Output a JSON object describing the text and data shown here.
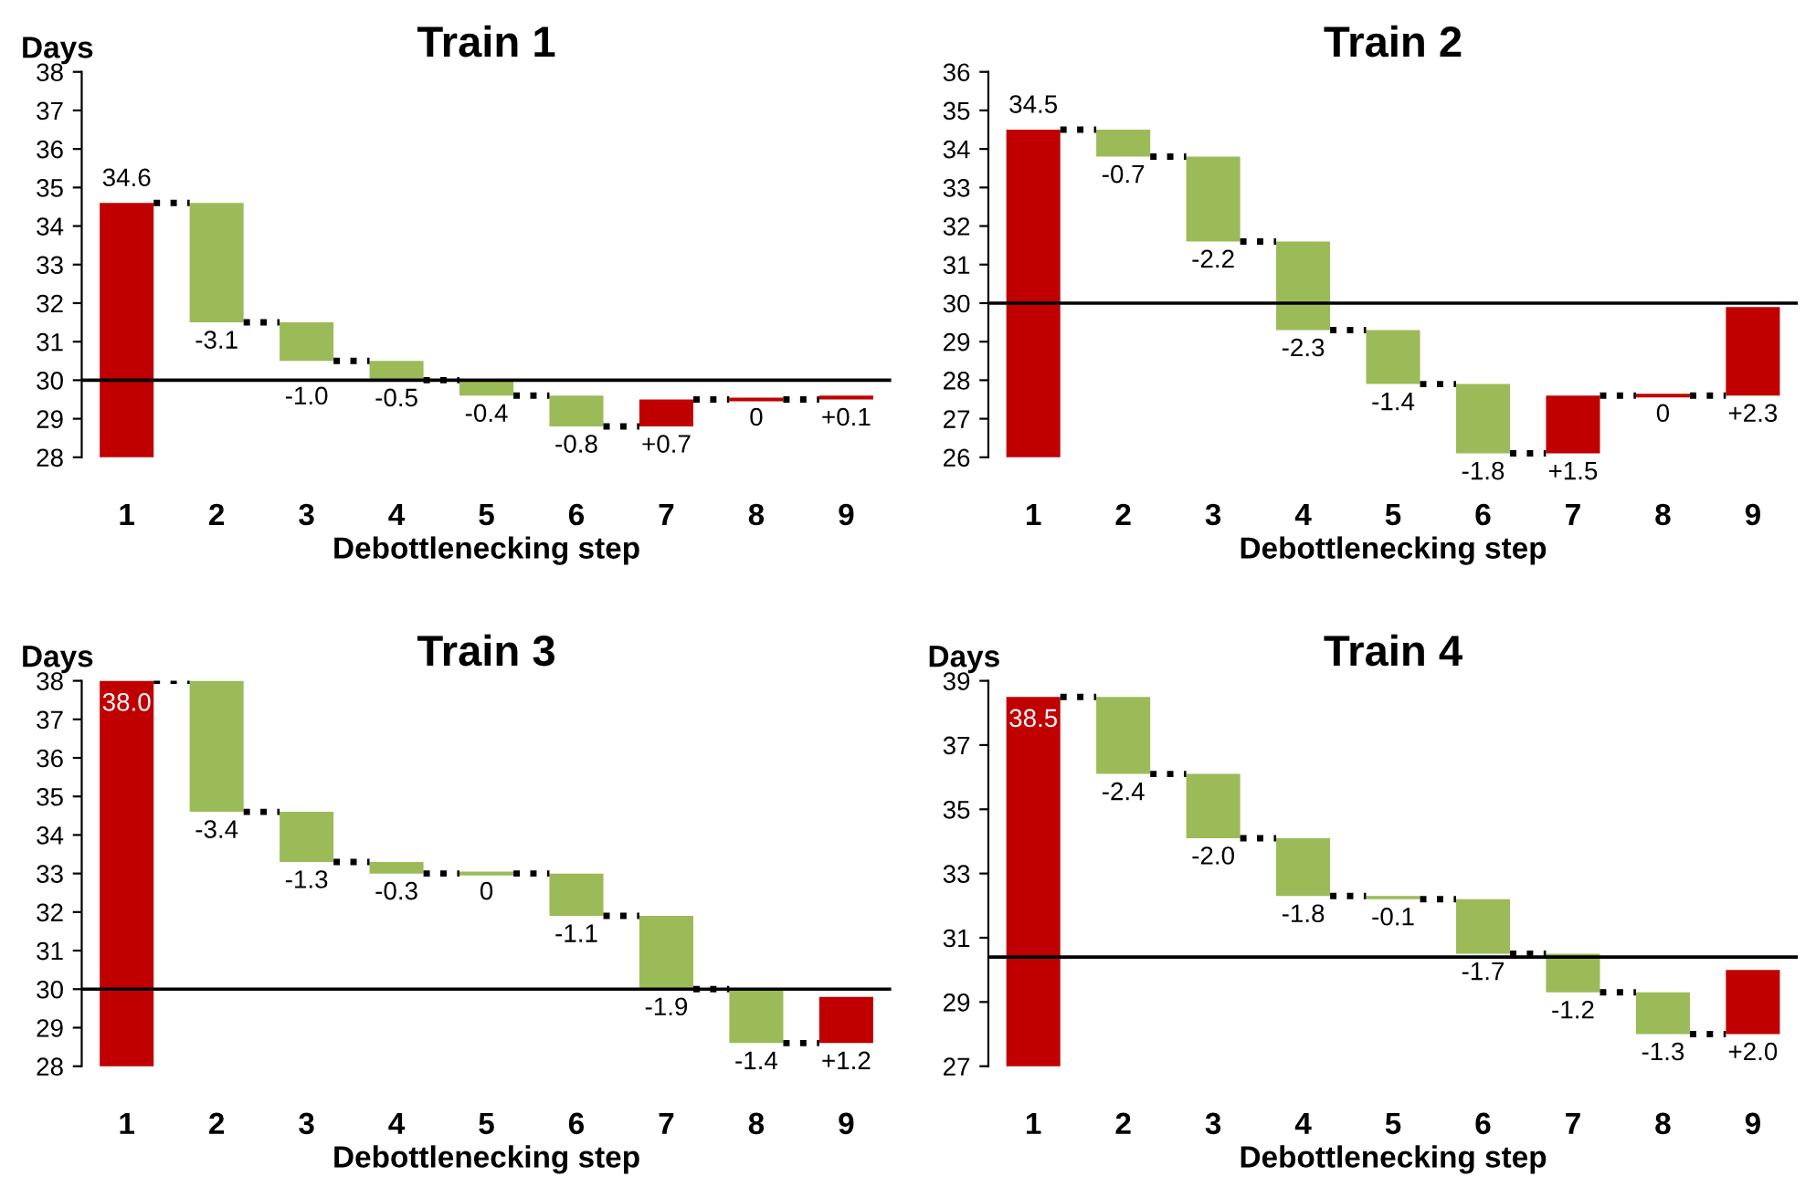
{
  "chart_data": [
    {
      "type": "bar",
      "title": "Train 1",
      "xlabel": "Debottlenecking step",
      "ylabel": "Days",
      "categories": [
        "1",
        "2",
        "3",
        "4",
        "5",
        "6",
        "7",
        "8",
        "9"
      ],
      "values": [
        34.6,
        -3.1,
        -1.0,
        -0.5,
        -0.4,
        -0.8,
        0.7,
        0,
        0.1
      ],
      "base": [
        0,
        34.6,
        31.5,
        30.5,
        30.0,
        29.6,
        28.8,
        29.5,
        29.5
      ],
      "colors": [
        "#c00000",
        "#9bbb59",
        "#9bbb59",
        "#9bbb59",
        "#9bbb59",
        "#9bbb59",
        "#c00000",
        "#c00000",
        "#c00000"
      ],
      "value_labels": [
        "34.6",
        "-3.1",
        "-1.0",
        "-0.5",
        "-0.4",
        "-0.8",
        "+0.7",
        "0",
        "+0.1"
      ],
      "ylim": [
        28,
        38
      ],
      "yticks": [
        28,
        29,
        30,
        31,
        32,
        33,
        34,
        35,
        36,
        37,
        38
      ],
      "ref_lines": [
        {
          "axis": "y",
          "value": 30,
          "color": "#000000"
        }
      ],
      "grid": false,
      "legend": false
    },
    {
      "type": "bar",
      "title": "Train 2",
      "xlabel": "Debottlenecking step",
      "categories": [
        "1",
        "2",
        "3",
        "4",
        "5",
        "6",
        "7",
        "8",
        "9"
      ],
      "values": [
        34.5,
        -0.7,
        -2.2,
        -2.3,
        -1.4,
        -1.8,
        1.5,
        0,
        2.3
      ],
      "base": [
        0,
        34.5,
        33.8,
        31.6,
        29.3,
        27.9,
        26.1,
        27.6,
        27.6
      ],
      "colors": [
        "#c00000",
        "#9bbb59",
        "#9bbb59",
        "#9bbb59",
        "#9bbb59",
        "#9bbb59",
        "#c00000",
        "#c00000",
        "#c00000"
      ],
      "value_labels": [
        "34.5",
        "-0.7",
        "-2.2",
        "-2.3",
        "-1.4",
        "-1.8",
        "+1.5",
        "0",
        "+2.3"
      ],
      "ylim": [
        26,
        36
      ],
      "yticks": [
        26,
        27,
        28,
        29,
        30,
        31,
        32,
        33,
        34,
        35,
        36
      ],
      "ref_lines": [
        {
          "axis": "y",
          "value": 30,
          "color": "#000000"
        }
      ],
      "grid": false,
      "legend": false
    },
    {
      "type": "bar",
      "title": "Train 3",
      "xlabel": "Debottlenecking step",
      "ylabel": "Days",
      "categories": [
        "1",
        "2",
        "3",
        "4",
        "5",
        "6",
        "7",
        "8",
        "9"
      ],
      "values": [
        38.0,
        -3.4,
        -1.3,
        -0.3,
        0,
        -1.1,
        -1.9,
        -1.4,
        1.2
      ],
      "base": [
        0,
        38.0,
        34.6,
        33.3,
        33.0,
        33.0,
        31.9,
        30.0,
        28.6
      ],
      "colors": [
        "#c00000",
        "#9bbb59",
        "#9bbb59",
        "#9bbb59",
        "#9bbb59",
        "#9bbb59",
        "#9bbb59",
        "#9bbb59",
        "#c00000"
      ],
      "value_labels": [
        "38.0",
        "-3.4",
        "-1.3",
        "-0.3",
        "0",
        "-1.1",
        "-1.9",
        "-1.4",
        "+1.2"
      ],
      "ylim": [
        28,
        38
      ],
      "yticks": [
        28,
        29,
        30,
        31,
        32,
        33,
        34,
        35,
        36,
        37,
        38
      ],
      "ref_lines": [
        {
          "axis": "y",
          "value": 30,
          "color": "#000000"
        }
      ],
      "grid": false,
      "legend": false
    },
    {
      "type": "bar",
      "title": "Train 4",
      "xlabel": "Debottlenecking step",
      "ylabel": "Days",
      "categories": [
        "1",
        "2",
        "3",
        "4",
        "5",
        "6",
        "7",
        "8",
        "9"
      ],
      "values": [
        38.5,
        -2.4,
        -2.0,
        -1.8,
        -0.1,
        -1.7,
        -1.2,
        -1.3,
        2.0
      ],
      "base": [
        0,
        38.5,
        36.1,
        34.1,
        32.3,
        32.2,
        30.5,
        29.3,
        28.0
      ],
      "colors": [
        "#c00000",
        "#9bbb59",
        "#9bbb59",
        "#9bbb59",
        "#9bbb59",
        "#9bbb59",
        "#9bbb59",
        "#9bbb59",
        "#c00000"
      ],
      "value_labels": [
        "38.5",
        "-2.4",
        "-2.0",
        "-1.8",
        "-0.1",
        "-1.7",
        "-1.2",
        "-1.3",
        "+2.0"
      ],
      "ylim": [
        27,
        39
      ],
      "yticks": [
        27,
        29,
        31,
        33,
        35,
        37,
        39
      ],
      "ref_lines": [
        {
          "axis": "y",
          "value": 30.4,
          "color": "#000000"
        }
      ],
      "grid": false,
      "legend": false
    }
  ]
}
